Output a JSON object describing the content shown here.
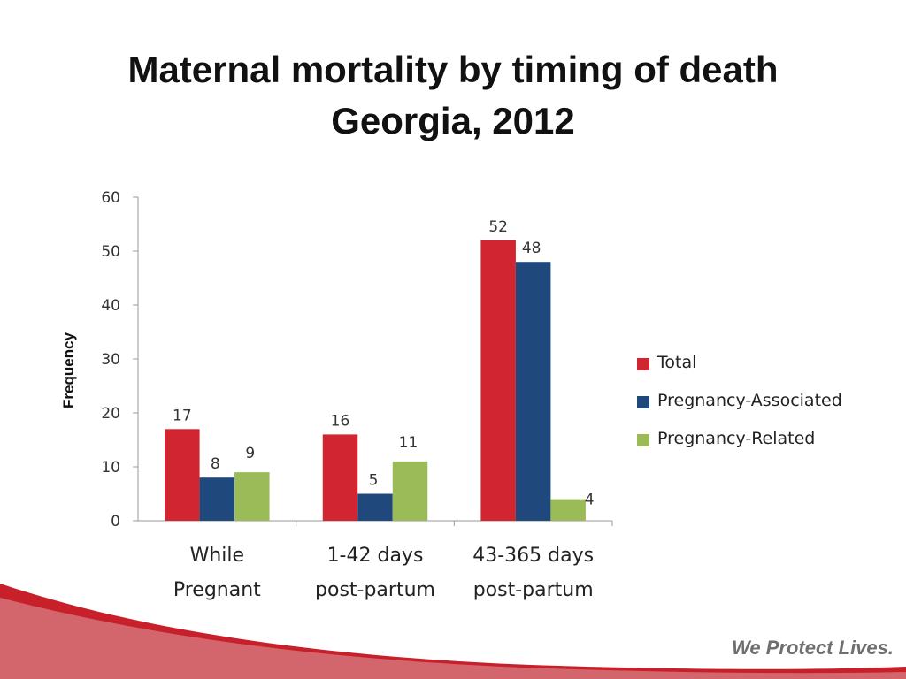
{
  "slide": {
    "title_line1": "Maternal mortality by timing of death",
    "title_line2": "Georgia,  2012",
    "slogan": "We Protect Lives."
  },
  "colors": {
    "total": "#d12631",
    "associated": "#1f497d",
    "related": "#9bbb59",
    "swoosh": "#c8202a",
    "axis": "#999999"
  },
  "chart_data": {
    "type": "bar",
    "title": "Maternal mortality by timing of death Georgia,  2012",
    "ylabel": "Frequency",
    "xlabel": "",
    "ylim": [
      0,
      60
    ],
    "yticks": [
      0,
      10,
      20,
      30,
      40,
      50,
      60
    ],
    "grid": false,
    "legend_position": "right",
    "categories": [
      [
        "While",
        "Pregnant"
      ],
      [
        "1-42 days",
        "post-partum"
      ],
      [
        "43-365 days",
        "post-partum"
      ]
    ],
    "series": [
      {
        "name": "Total",
        "values": [
          17,
          16,
          52
        ],
        "color": "#d12631"
      },
      {
        "name": "Pregnancy-Associated",
        "values": [
          8,
          5,
          48
        ],
        "color": "#1f497d"
      },
      {
        "name": "Pregnancy-Related",
        "values": [
          9,
          11,
          4
        ],
        "color": "#9bbb59"
      }
    ]
  }
}
